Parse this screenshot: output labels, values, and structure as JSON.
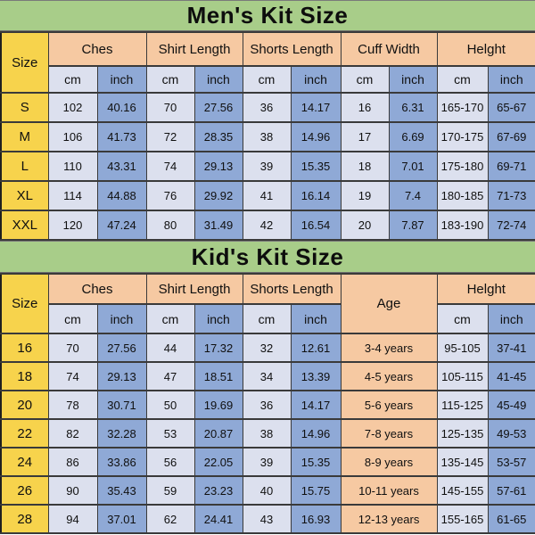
{
  "colors": {
    "banner_green": "#a8cd89",
    "size_column_yellow": "#f7d34c",
    "group_header_peach": "#f6c9a2",
    "cm_cell_lavender": "#dce0ee",
    "inch_cell_blue": "#8fa9d6",
    "text_black": "#101010"
  },
  "men": {
    "title": "Men's Kit Size",
    "size_header": "Size",
    "group_headers": [
      "Ches",
      "Shirt Length",
      "Shorts Length",
      "Cuff Width",
      "Helght"
    ],
    "unit_cm": "cm",
    "unit_inch": "inch",
    "rows": [
      {
        "size": "S",
        "cells": [
          "102",
          "40.16",
          "70",
          "27.56",
          "36",
          "14.17",
          "16",
          "6.31",
          "165-170",
          "65-67"
        ]
      },
      {
        "size": "M",
        "cells": [
          "106",
          "41.73",
          "72",
          "28.35",
          "38",
          "14.96",
          "17",
          "6.69",
          "170-175",
          "67-69"
        ]
      },
      {
        "size": "L",
        "cells": [
          "110",
          "43.31",
          "74",
          "29.13",
          "39",
          "15.35",
          "18",
          "7.01",
          "175-180",
          "69-71"
        ]
      },
      {
        "size": "XL",
        "cells": [
          "114",
          "44.88",
          "76",
          "29.92",
          "41",
          "16.14",
          "19",
          "7.4",
          "180-185",
          "71-73"
        ]
      },
      {
        "size": "XXL",
        "cells": [
          "120",
          "47.24",
          "80",
          "31.49",
          "42",
          "16.54",
          "20",
          "7.87",
          "183-190",
          "72-74"
        ]
      }
    ]
  },
  "kids": {
    "title": "Kid's Kit Size",
    "size_header": "Size",
    "group_headers": [
      "Ches",
      "Shirt Length",
      "Shorts Length"
    ],
    "age_header": "Age",
    "height_header": "Helght",
    "unit_cm": "cm",
    "unit_inch": "inch",
    "rows": [
      {
        "size": "16",
        "cells": [
          "70",
          "27.56",
          "44",
          "17.32",
          "32",
          "12.61"
        ],
        "age": "3-4 years",
        "height": [
          "95-105",
          "37-41"
        ]
      },
      {
        "size": "18",
        "cells": [
          "74",
          "29.13",
          "47",
          "18.51",
          "34",
          "13.39"
        ],
        "age": "4-5 years",
        "height": [
          "105-115",
          "41-45"
        ]
      },
      {
        "size": "20",
        "cells": [
          "78",
          "30.71",
          "50",
          "19.69",
          "36",
          "14.17"
        ],
        "age": "5-6 years",
        "height": [
          "115-125",
          "45-49"
        ]
      },
      {
        "size": "22",
        "cells": [
          "82",
          "32.28",
          "53",
          "20.87",
          "38",
          "14.96"
        ],
        "age": "7-8 years",
        "height": [
          "125-135",
          "49-53"
        ]
      },
      {
        "size": "24",
        "cells": [
          "86",
          "33.86",
          "56",
          "22.05",
          "39",
          "15.35"
        ],
        "age": "8-9 years",
        "height": [
          "135-145",
          "53-57"
        ]
      },
      {
        "size": "26",
        "cells": [
          "90",
          "35.43",
          "59",
          "23.23",
          "40",
          "15.75"
        ],
        "age": "10-11 years",
        "height": [
          "145-155",
          "57-61"
        ]
      },
      {
        "size": "28",
        "cells": [
          "94",
          "37.01",
          "62",
          "24.41",
          "43",
          "16.93"
        ],
        "age": "12-13 years",
        "height": [
          "155-165",
          "61-65"
        ]
      }
    ]
  },
  "chart_data": [
    {
      "type": "table",
      "title": "Men's Kit Size",
      "columns": [
        "Size",
        "Ches cm",
        "Ches inch",
        "Shirt Length cm",
        "Shirt Length inch",
        "Shorts Length cm",
        "Shorts Length inch",
        "Cuff Width cm",
        "Cuff Width inch",
        "Helght cm",
        "Helght inch"
      ],
      "rows": [
        [
          "S",
          "102",
          "40.16",
          "70",
          "27.56",
          "36",
          "14.17",
          "16",
          "6.31",
          "165-170",
          "65-67"
        ],
        [
          "M",
          "106",
          "41.73",
          "72",
          "28.35",
          "38",
          "14.96",
          "17",
          "6.69",
          "170-175",
          "67-69"
        ],
        [
          "L",
          "110",
          "43.31",
          "74",
          "29.13",
          "39",
          "15.35",
          "18",
          "7.01",
          "175-180",
          "69-71"
        ],
        [
          "XL",
          "114",
          "44.88",
          "76",
          "29.92",
          "41",
          "16.14",
          "19",
          "7.4",
          "180-185",
          "71-73"
        ],
        [
          "XXL",
          "120",
          "47.24",
          "80",
          "31.49",
          "42",
          "16.54",
          "20",
          "7.87",
          "183-190",
          "72-74"
        ]
      ]
    },
    {
      "type": "table",
      "title": "Kid's Kit Size",
      "columns": [
        "Size",
        "Ches cm",
        "Ches inch",
        "Shirt Length cm",
        "Shirt Length inch",
        "Shorts Length cm",
        "Shorts Length inch",
        "Age",
        "Helght cm",
        "Helght inch"
      ],
      "rows": [
        [
          "16",
          "70",
          "27.56",
          "44",
          "17.32",
          "32",
          "12.61",
          "3-4 years",
          "95-105",
          "37-41"
        ],
        [
          "18",
          "74",
          "29.13",
          "47",
          "18.51",
          "34",
          "13.39",
          "4-5 years",
          "105-115",
          "41-45"
        ],
        [
          "20",
          "78",
          "30.71",
          "50",
          "19.69",
          "36",
          "14.17",
          "5-6 years",
          "115-125",
          "45-49"
        ],
        [
          "22",
          "82",
          "32.28",
          "53",
          "20.87",
          "38",
          "14.96",
          "7-8 years",
          "125-135",
          "49-53"
        ],
        [
          "24",
          "86",
          "33.86",
          "56",
          "22.05",
          "39",
          "15.35",
          "8-9 years",
          "135-145",
          "53-57"
        ],
        [
          "26",
          "90",
          "35.43",
          "59",
          "23.23",
          "40",
          "15.75",
          "10-11 years",
          "145-155",
          "57-61"
        ],
        [
          "28",
          "94",
          "37.01",
          "62",
          "24.41",
          "43",
          "16.93",
          "12-13 years",
          "155-165",
          "61-65"
        ]
      ]
    }
  ]
}
